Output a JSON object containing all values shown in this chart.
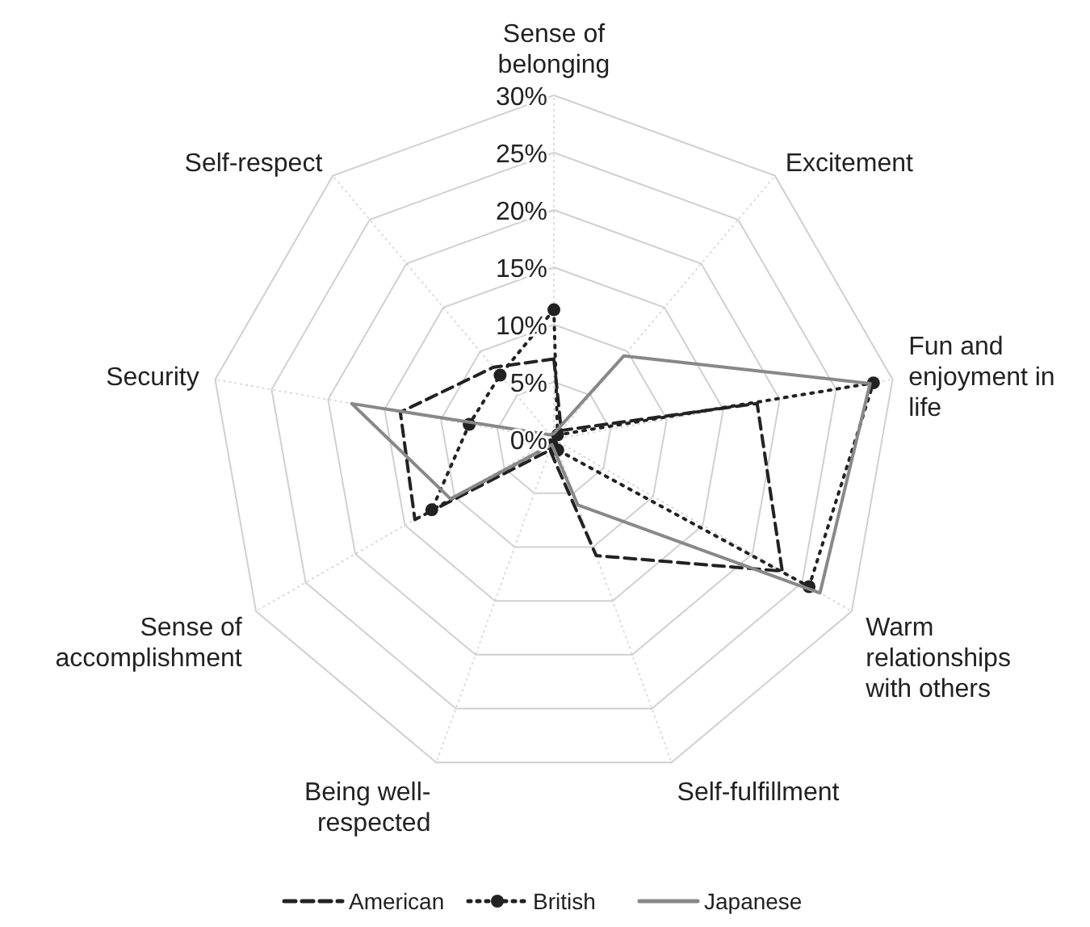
{
  "chart_data": {
    "type": "radar",
    "categories": [
      "Sense of belonging",
      "Excitement",
      "Fun and enjoyment in life",
      "Warm relationships with others",
      "Self-fulfillment",
      "Being well-respected",
      "Sense of accomplishment",
      "Security",
      "Self-respect"
    ],
    "series": [
      {
        "name": "American",
        "color": "#222222",
        "line_style": "dashed",
        "marker": "none",
        "values": [
          7,
          1,
          18,
          23,
          10.8,
          1,
          14,
          13.6,
          8.2
        ]
      },
      {
        "name": "British",
        "color": "#222222",
        "line_style": "dotted",
        "marker": "circle",
        "values": [
          11.3,
          0.5,
          28.3,
          25.7,
          1,
          0.5,
          12.3,
          7.5,
          7.3
        ]
      },
      {
        "name": "Japanese",
        "color": "#888888",
        "line_style": "solid",
        "marker": "none",
        "values": [
          0.5,
          9.5,
          28,
          26.8,
          6.1,
          0.5,
          10.4,
          17.9,
          0.5
        ]
      }
    ],
    "ylim": [
      0,
      30
    ],
    "yticks": [
      {
        "value": 0,
        "label": "0%"
      },
      {
        "value": 5,
        "label": "5%"
      },
      {
        "value": 10,
        "label": "10%"
      },
      {
        "value": 15,
        "label": "15%"
      },
      {
        "value": 20,
        "label": "20%"
      },
      {
        "value": 25,
        "label": "25%"
      },
      {
        "value": 30,
        "label": "30%"
      }
    ],
    "grid": true,
    "legend": "bottom"
  }
}
